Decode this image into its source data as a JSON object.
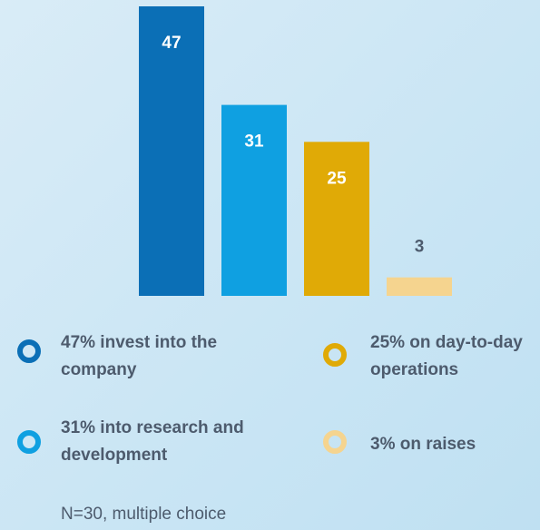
{
  "chart_data": {
    "type": "bar",
    "categories": [
      "47% invest into the company",
      "31% into research and development",
      "25% on day-to-day operations",
      "3% on raises"
    ],
    "values": [
      47,
      31,
      25,
      3
    ],
    "colors": [
      "#0b6fb6",
      "#0fa0e1",
      "#e0aa06",
      "#f5d48f"
    ],
    "note": "N=30, multiple choice"
  }
}
